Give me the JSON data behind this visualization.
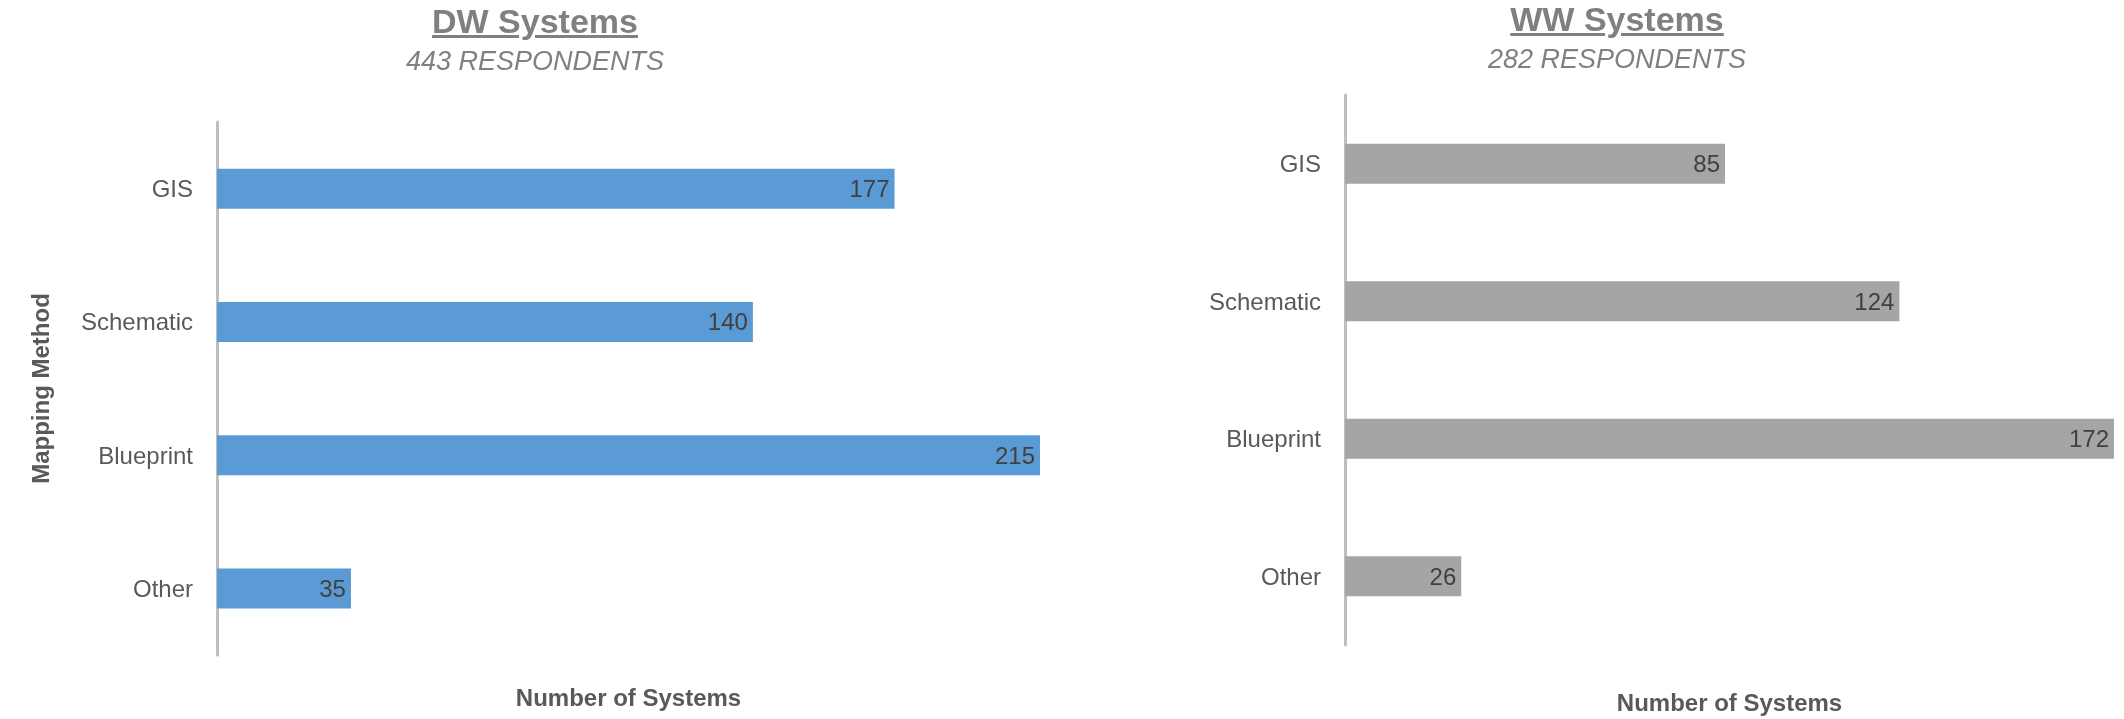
{
  "chart_data": [
    {
      "type": "bar",
      "orientation": "horizontal",
      "title": "DW Systems",
      "subtitle": "443 RESPONDENTS",
      "xlabel": "Number of Systems",
      "ylabel": "Mapping Method",
      "categories": [
        "GIS",
        "Schematic",
        "Blueprint",
        "Other"
      ],
      "values": [
        177,
        140,
        215,
        35
      ],
      "color": "#5b9bd5",
      "data_labels": true
    },
    {
      "type": "bar",
      "orientation": "horizontal",
      "title": "WW Systems",
      "subtitle": "282 RESPONDENTS",
      "xlabel": "Number of Systems",
      "categories": [
        "GIS",
        "Schematic",
        "Blueprint",
        "Other"
      ],
      "values": [
        85,
        124,
        172,
        26
      ],
      "color": "#a5a5a5",
      "data_labels": true
    }
  ]
}
